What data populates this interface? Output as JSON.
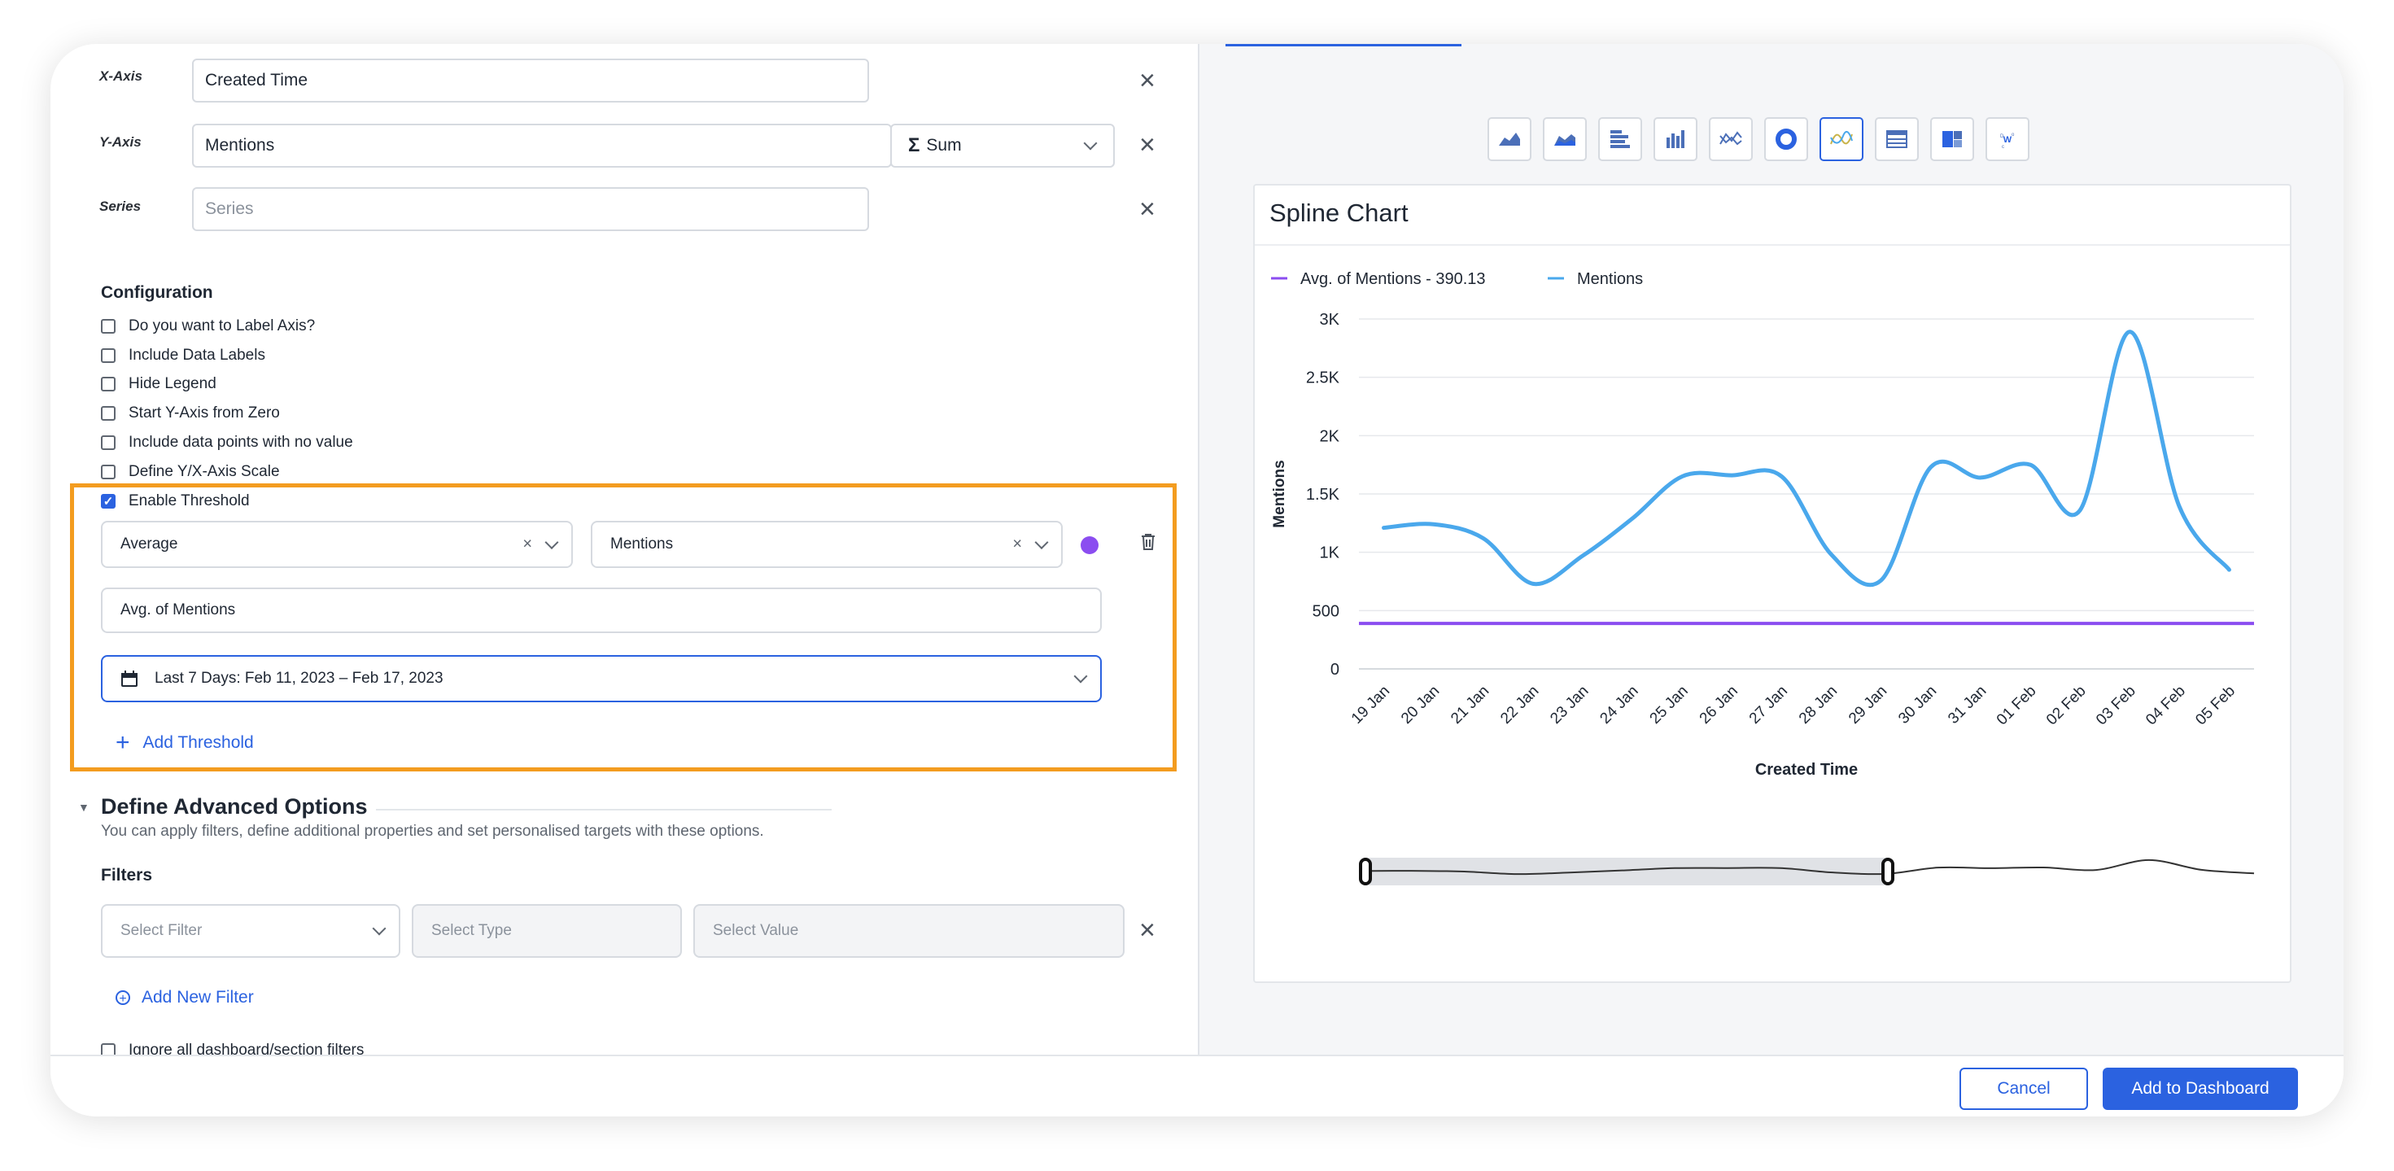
{
  "axes": {
    "x_label": "X-Axis",
    "x_value": "Created Time",
    "y_label": "Y-Axis",
    "y_value": "Mentions",
    "y_agg": "Sum",
    "y_agg_symbol": "Σ",
    "series_label": "Series",
    "series_placeholder": "Series"
  },
  "configuration": {
    "title": "Configuration",
    "options": [
      {
        "label": "Do you want to Label Axis?",
        "checked": false
      },
      {
        "label": "Include Data Labels",
        "checked": false
      },
      {
        "label": "Hide Legend",
        "checked": false
      },
      {
        "label": "Start Y-Axis from Zero",
        "checked": false
      },
      {
        "label": "Include data points with no value",
        "checked": false
      },
      {
        "label": "Define Y/X-Axis Scale",
        "checked": false
      },
      {
        "label": "Enable Threshold",
        "checked": true
      }
    ]
  },
  "threshold": {
    "type": "Average",
    "metric": "Mentions",
    "color": "#8b4df0",
    "name": "Avg. of Mentions",
    "date_range": "Last 7 Days: Feb 11, 2023 – Feb 17, 2023",
    "add_label": "Add Threshold"
  },
  "advanced": {
    "title": "Define Advanced Options",
    "description": "You can apply filters, define additional properties and set personalised targets with these options.",
    "filters_title": "Filters",
    "filter_placeholder": "Select Filter",
    "type_placeholder": "Select Type",
    "value_placeholder": "Select Value",
    "add_filter_label": "Add New Filter",
    "ignore_label": "Ignore all dashboard/section filters"
  },
  "footer": {
    "cancel": "Cancel",
    "add": "Add to Dashboard"
  },
  "chart_types": [
    "area-chart-icon",
    "stacked-area-chart-icon",
    "horizontal-bar-chart-icon",
    "column-chart-icon",
    "line-chart-icon",
    "donut-chart-icon",
    "spline-chart-icon",
    "table-chart-icon",
    "treemap-chart-icon",
    "word-cloud-icon"
  ],
  "active_chart_type": 6,
  "colors": {
    "accent": "#2b62e0",
    "highlight": "#f39c1f",
    "series": "#4aa8ec",
    "threshold": "#8b4df0"
  },
  "chart_data": {
    "type": "line",
    "title": "Spline Chart",
    "xlabel": "Created Time",
    "ylabel": "Mentions",
    "categories": [
      "19 Jan",
      "20 Jan",
      "21 Jan",
      "22 Jan",
      "23 Jan",
      "24 Jan",
      "25 Jan",
      "26 Jan",
      "27 Jan",
      "28 Jan",
      "29 Jan",
      "30 Jan",
      "31 Jan",
      "01 Feb",
      "02 Feb",
      "03 Feb",
      "04 Feb",
      "05 Feb"
    ],
    "series": [
      {
        "name": "Mentions",
        "values": [
          1210,
          1240,
          1120,
          730,
          970,
          1290,
          1650,
          1660,
          1650,
          980,
          760,
          1730,
          1640,
          1750,
          1360,
          2890,
          1390,
          850
        ]
      }
    ],
    "threshold": {
      "name": "Avg. of Mentions - 390.13",
      "value": 390.13
    },
    "legend": [
      "Avg. of Mentions - 390.13",
      "Mentions"
    ],
    "legend_position": "top-left",
    "y_ticks": [
      "0",
      "500",
      "1K",
      "1.5K",
      "2K",
      "2.5K",
      "3K"
    ],
    "ylim": [
      0,
      3000
    ],
    "grid": true
  }
}
